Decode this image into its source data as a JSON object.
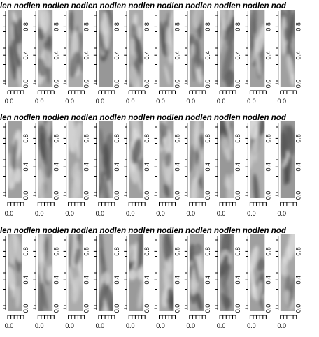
{
  "figure": {
    "grid": {
      "rows": 3,
      "cols": 10
    }
  },
  "chart_data": {
    "type": "heatmap",
    "panel_title": "len nodlen nodlen nodlen nodlen nodlen nodlen nodlen nodlen nodlen nod",
    "row_titles": [
      "len nodlen nodlen nodlen nodlen nodlen nodlen nodlen nodlen nodlen nod",
      "len nodlen nodlen nodlen nodlen nodlen nodlen nodlen nodlen nodlen nod",
      "len nodlen nodlen nodlen nodlen nodlen nodlen nodlen nodlen nodlen nod"
    ],
    "y_ticks": [
      0.0,
      0.4,
      0.8
    ],
    "y_tick_labels": [
      "0.0",
      "0.4",
      "0.8"
    ],
    "x_tick_label": "0.0",
    "colormap": "grayscale",
    "ylim": [
      0,
      1
    ],
    "legend": "none",
    "panels": 30
  }
}
